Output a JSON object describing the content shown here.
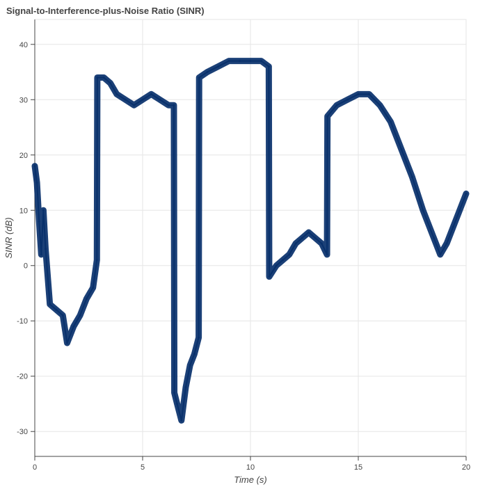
{
  "chart_data": {
    "type": "line",
    "title": "Signal-to-Interference-plus-Noise Ratio (SINR)",
    "xlabel": "Time (s)",
    "ylabel": "SINR (dB)",
    "xlim": [
      0,
      20
    ],
    "ylim": [
      -34.5,
      44.5
    ],
    "x_ticks": [
      0,
      5,
      10,
      15,
      20
    ],
    "y_ticks": [
      -30,
      -20,
      -10,
      0,
      10,
      20,
      30,
      40
    ],
    "grid": true,
    "line_color": "#08306b",
    "series": [
      {
        "x": [
          0,
          0.1,
          0.2,
          0.3,
          0.4,
          0.5,
          0.7,
          1.0,
          1.3,
          1.5,
          1.8,
          2.1,
          2.4,
          2.7,
          2.88,
          2.9,
          3.2,
          3.5,
          3.8,
          4.2,
          4.6,
          5.0,
          5.4,
          5.8,
          6.2,
          6.45,
          6.47,
          6.6,
          6.8,
          7.0,
          7.2,
          7.4,
          7.6,
          7.62,
          8.0,
          8.5,
          9.0,
          9.5,
          10.0,
          10.5,
          10.85,
          10.87,
          11.2,
          11.5,
          11.8,
          12.1,
          12.4,
          12.7,
          13.0,
          13.3,
          13.55,
          13.57,
          14.0,
          14.5,
          15.0,
          15.5,
          16.0,
          16.5,
          17.0,
          17.5,
          18.0,
          18.5,
          18.8,
          19.1,
          19.4,
          19.7,
          20.0
        ],
        "y": [
          18,
          15,
          8,
          2,
          10,
          3,
          -7,
          -8,
          -9,
          -14,
          -11,
          -9,
          -6,
          -4,
          1,
          34,
          34,
          33,
          31,
          30,
          29,
          30,
          31,
          30,
          29,
          29,
          -23,
          -25,
          -28,
          -22,
          -18,
          -16,
          -13,
          34,
          35,
          36,
          37,
          37,
          37,
          37,
          36,
          -2,
          0,
          1,
          2,
          4,
          5,
          6,
          5,
          4,
          2,
          27,
          29,
          30,
          31,
          31,
          29,
          26,
          21,
          16,
          10,
          5,
          2,
          4,
          7,
          10,
          13
        ]
      }
    ]
  }
}
